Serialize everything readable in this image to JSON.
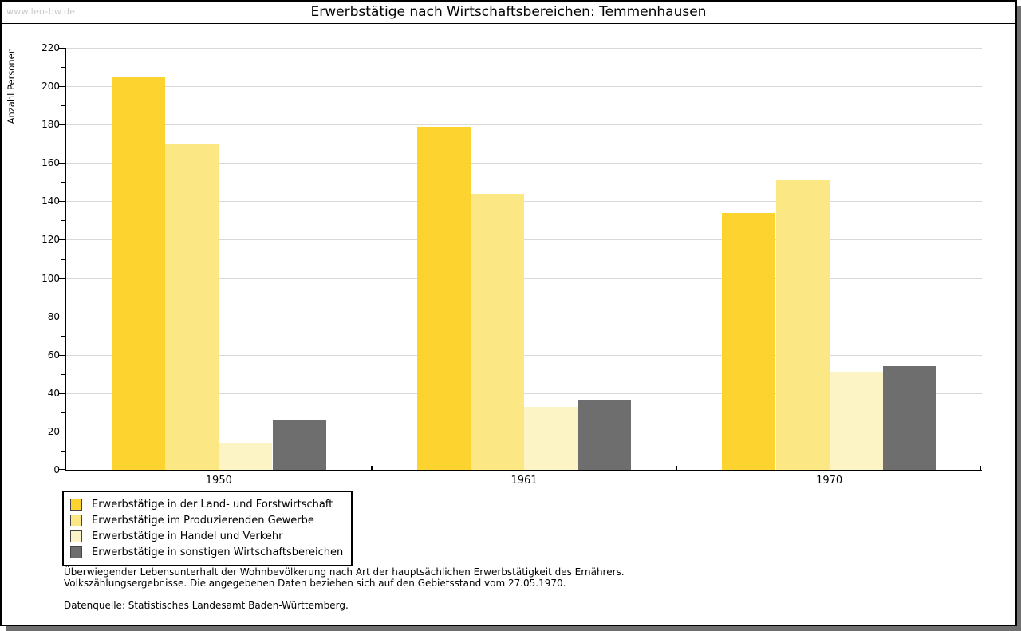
{
  "watermark": "www.leo-bw.de",
  "title": "Erwerbstätige nach Wirtschaftsbereichen: Temmenhausen",
  "chart_data": {
    "type": "bar",
    "title": "Erwerbstätige nach Wirtschaftsbereichen: Temmenhausen",
    "xlabel": "",
    "ylabel": "Anzahl Personen",
    "ylim": [
      0,
      220
    ],
    "ytick_step": 20,
    "yminor_step": 10,
    "grid": true,
    "legend_position": "bottom-left",
    "categories": [
      "1950",
      "1961",
      "1970"
    ],
    "series": [
      {
        "name": "Erwerbstätige in der Land- und Forstwirtschaft",
        "color": "#fcd32f",
        "values": [
          205,
          179,
          134
        ]
      },
      {
        "name": "Erwerbstätige im Produzierenden Gewerbe",
        "color": "#fbe783",
        "values": [
          170,
          144,
          151
        ]
      },
      {
        "name": "Erwerbstätige in Handel und Verkehr",
        "color": "#fcf4c4",
        "values": [
          14,
          33,
          51
        ]
      },
      {
        "name": "Erwerbstätige in sonstigen Wirtschaftsbereichen",
        "color": "#6e6e6e",
        "values": [
          26,
          36,
          54
        ]
      }
    ]
  },
  "footnotes": {
    "line1": "Überwiegender Lebensunterhalt der Wohnbevölkerung nach Art der hauptsächlichen Erwerbstätigkeit des Ernährers.",
    "line2": "Volkszählungsergebnisse. Die angegebenen Daten beziehen sich auf den Gebietsstand vom 27.05.1970.",
    "source": "Datenquelle: Statistisches Landesamt Baden-Württemberg."
  }
}
